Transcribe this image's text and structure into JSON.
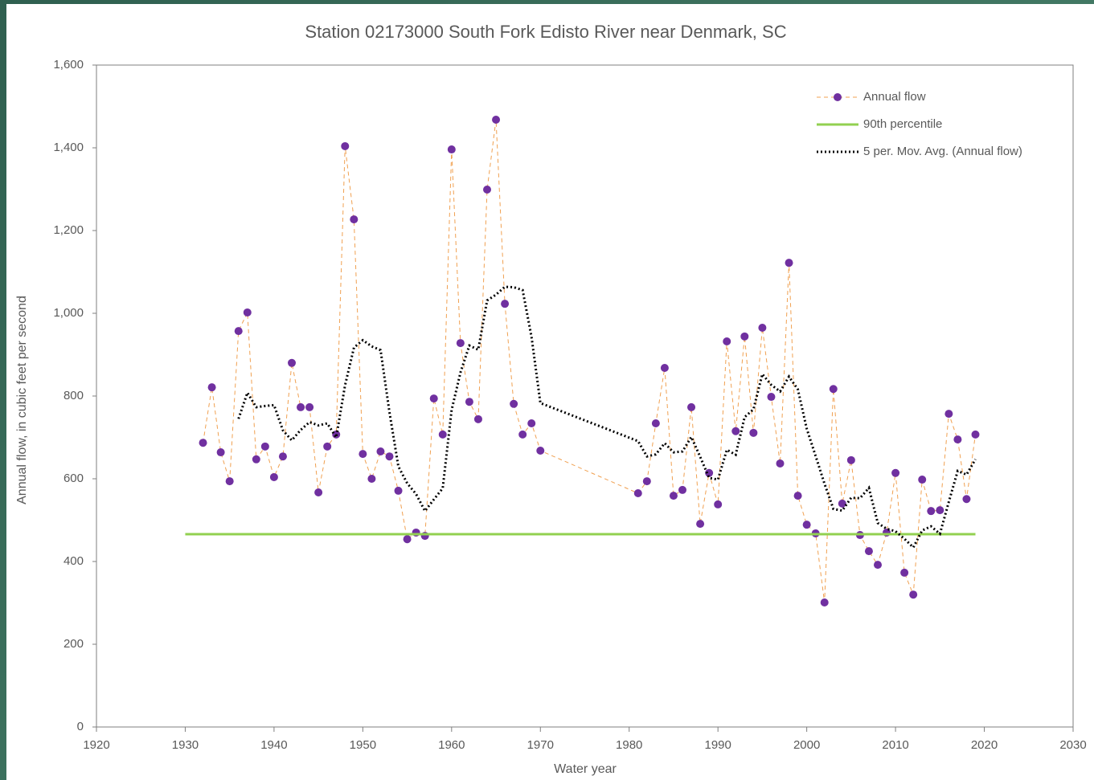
{
  "chart_data": {
    "type": "line",
    "title": "Station 02173000 South Fork Edisto River near Denmark, SC",
    "x_label": "Water year",
    "y_label": "Annual flow, in cubic feet per second",
    "xlim": [
      1920,
      2030
    ],
    "xticks": [
      1920,
      1930,
      1940,
      1950,
      1960,
      1970,
      1980,
      1990,
      2000,
      2010,
      2020,
      2030
    ],
    "ylim": [
      0,
      1600
    ],
    "yticks": [
      0,
      200,
      400,
      600,
      800,
      {
        "value": 1000,
        "label": "1,000"
      },
      {
        "value": 1200,
        "label": "1,200"
      },
      {
        "value": 1400,
        "label": "1,400"
      },
      {
        "value": 1600,
        "label": "1,600"
      }
    ],
    "grid": false,
    "legend": "upper right",
    "series": [
      {
        "name": "Annual flow",
        "color": "#f0a050",
        "dash": "dashed",
        "marker": "circle",
        "marker_color": "#7030a0",
        "x": [
          1932,
          1933,
          1934,
          1935,
          1936,
          1937,
          1938,
          1939,
          1940,
          1941,
          1942,
          1943,
          1944,
          1945,
          1946,
          1947,
          1948,
          1949,
          1950,
          1951,
          1952,
          1953,
          1954,
          1955,
          1956,
          1957,
          1958,
          1959,
          1960,
          1961,
          1962,
          1963,
          1964,
          1965,
          1966,
          1967,
          1968,
          1969,
          1970,
          1981,
          1982,
          1983,
          1984,
          1985,
          1986,
          1987,
          1988,
          1989,
          1990,
          1991,
          1992,
          1993,
          1994,
          1995,
          1996,
          1997,
          1998,
          1999,
          2000,
          2001,
          2002,
          2003,
          2004,
          2005,
          2006,
          2007,
          2008,
          2009,
          2010,
          2011,
          2012,
          2013,
          2014,
          2015,
          2016,
          2017,
          2018,
          2019
        ],
        "values": [
          687,
          821,
          664,
          594,
          957,
          1002,
          647,
          678,
          604,
          654,
          880,
          773,
          773,
          567,
          678,
          707,
          1404,
          1227,
          660,
          600,
          666,
          654,
          571,
          454,
          470,
          462,
          794,
          707,
          1396,
          928,
          786,
          744,
          1299,
          1468,
          1023,
          781,
          707,
          734,
          668,
          565,
          594,
          734,
          868,
          559,
          573,
          773,
          491,
          614,
          538,
          932,
          715,
          944,
          711,
          965,
          798,
          637,
          1122,
          559,
          489,
          468,
          301,
          817,
          540,
          645,
          464,
          425,
          392,
          470,
          614,
          373,
          320,
          598,
          522,
          524,
          757,
          695,
          551,
          707
        ]
      },
      {
        "name": "90th percentile",
        "color": "#92d050",
        "dash": "solid",
        "marker": "none",
        "x": [
          1930,
          2019
        ],
        "values": [
          466,
          466
        ]
      },
      {
        "name": "5 per. Mov. Avg. (Annual flow)",
        "color": "#000000",
        "dash": "dotted",
        "marker": "none",
        "x": [
          1936,
          1937,
          1938,
          1939,
          1940,
          1941,
          1942,
          1943,
          1944,
          1945,
          1946,
          1947,
          1948,
          1949,
          1950,
          1951,
          1952,
          1953,
          1954,
          1955,
          1956,
          1957,
          1958,
          1959,
          1960,
          1961,
          1962,
          1963,
          1964,
          1965,
          1966,
          1967,
          1968,
          1969,
          1970,
          1981,
          1982,
          1983,
          1984,
          1985,
          1986,
          1987,
          1988,
          1989,
          1990,
          1991,
          1992,
          1993,
          1994,
          1995,
          1996,
          1997,
          1998,
          1999,
          2000,
          2001,
          2002,
          2003,
          2004,
          2005,
          2006,
          2007,
          2008,
          2009,
          2010,
          2011,
          2012,
          2013,
          2014,
          2015,
          2016,
          2017,
          2018,
          2019
        ],
        "values": [
          745,
          808,
          773,
          776,
          778,
          717,
          693,
          718,
          737,
          729,
          734,
          700,
          826,
          917,
          935,
          920,
          911,
          761,
          630,
          589,
          563,
          522,
          550,
          577,
          766,
          857,
          922,
          912,
          1031,
          1045,
          1064,
          1063,
          1056,
          943,
          783,
          691,
          654,
          659,
          686,
          664,
          666,
          701,
          653,
          602,
          598,
          670,
          658,
          749,
          768,
          853,
          827,
          811,
          847,
          816,
          721,
          655,
          588,
          527,
          523,
          554,
          553,
          578,
          493,
          479,
          473,
          455,
          434,
          475,
          485,
          467,
          544,
          619,
          610,
          647
        ]
      }
    ]
  }
}
